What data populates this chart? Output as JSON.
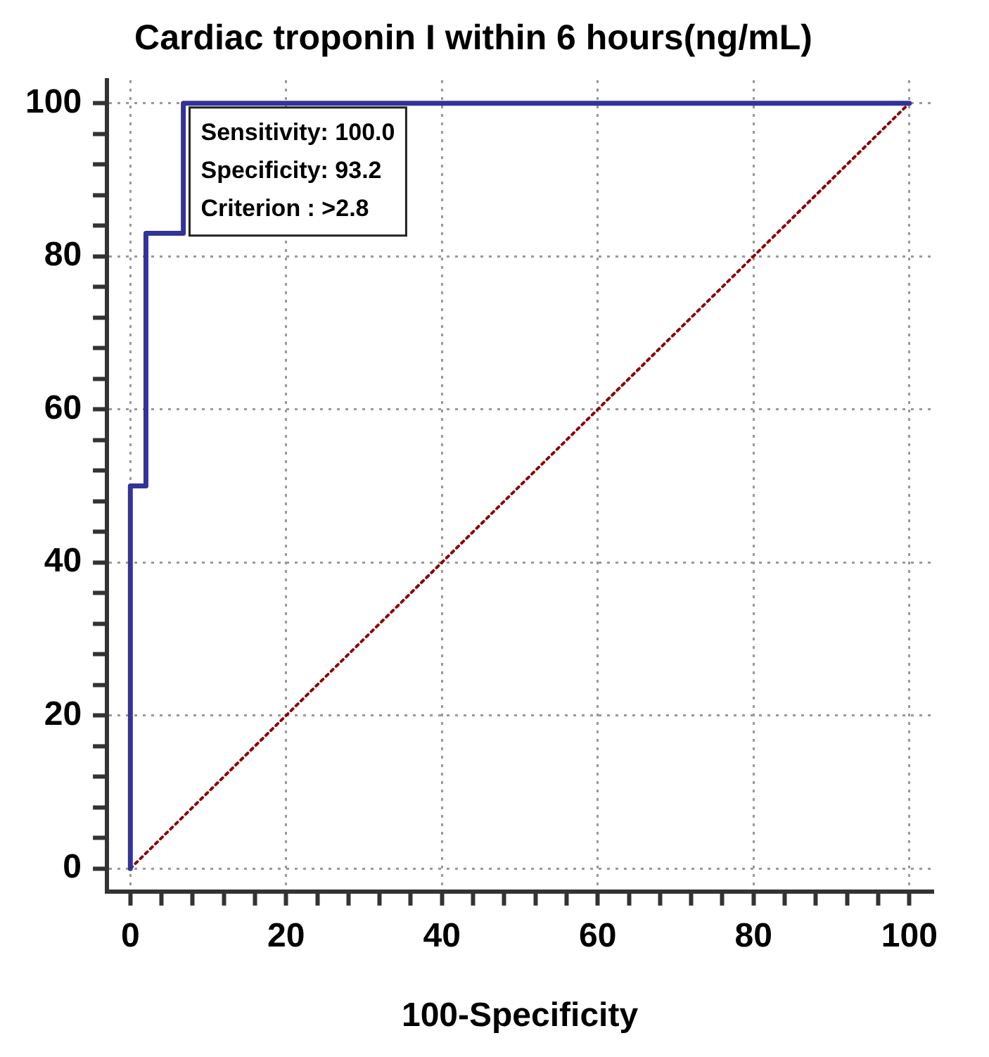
{
  "chart_data": {
    "type": "step",
    "title": "Cardiac troponin I within 6 hours(ng/mL)",
    "xlabel": "100-Specificity",
    "series": [
      {
        "x": [
          0,
          0,
          2,
          6.8,
          100
        ],
        "values": [
          0,
          50,
          83,
          100,
          100
        ],
        "color": "#333399",
        "line_style": "solid"
      },
      {
        "type": "line",
        "x": [
          0,
          100
        ],
        "values": [
          0,
          100
        ],
        "color": "#8b0000",
        "line_style": "dotted"
      }
    ],
    "xlim": [
      -3,
      103
    ],
    "ylim": [
      -3,
      103
    ],
    "xticks": [
      0,
      {
        "value": 4,
        "label": null
      },
      {
        "value": 8,
        "label": null
      },
      {
        "value": 12,
        "label": null
      },
      {
        "value": 16,
        "label": null
      },
      20,
      {
        "value": 24,
        "label": null
      },
      {
        "value": 28,
        "label": null
      },
      {
        "value": 32,
        "label": null
      },
      {
        "value": 36,
        "label": null
      },
      40,
      {
        "value": 44,
        "label": null
      },
      {
        "value": 48,
        "label": null
      },
      {
        "value": 52,
        "label": null
      },
      {
        "value": 56,
        "label": null
      },
      60,
      {
        "value": 64,
        "label": null
      },
      {
        "value": 68,
        "label": null
      },
      {
        "value": 72,
        "label": null
      },
      {
        "value": 76,
        "label": null
      },
      80,
      {
        "value": 84,
        "label": null
      },
      {
        "value": 88,
        "label": null
      },
      {
        "value": 92,
        "label": null
      },
      {
        "value": 96,
        "label": null
      },
      100
    ],
    "yticks": [
      0,
      {
        "value": 4,
        "label": null
      },
      {
        "value": 8,
        "label": null
      },
      {
        "value": 12,
        "label": null
      },
      {
        "value": 16,
        "label": null
      },
      20,
      {
        "value": 24,
        "label": null
      },
      {
        "value": 28,
        "label": null
      },
      {
        "value": 32,
        "label": null
      },
      {
        "value": 36,
        "label": null
      },
      40,
      {
        "value": 44,
        "label": null
      },
      {
        "value": 48,
        "label": null
      },
      {
        "value": 52,
        "label": null
      },
      {
        "value": 56,
        "label": null
      },
      60,
      {
        "value": 64,
        "label": null
      },
      {
        "value": 68,
        "label": null
      },
      {
        "value": 72,
        "label": null
      },
      {
        "value": 76,
        "label": null
      },
      80,
      {
        "value": 84,
        "label": null
      },
      {
        "value": 88,
        "label": null
      },
      {
        "value": 92,
        "label": null
      },
      {
        "value": 96,
        "label": null
      },
      100
    ],
    "grid": true,
    "legend": false,
    "marker": "none",
    "annotations": [
      "Sensitivity: 100.0",
      "Specificity: 93.2",
      "Criterion : >2.8"
    ]
  }
}
